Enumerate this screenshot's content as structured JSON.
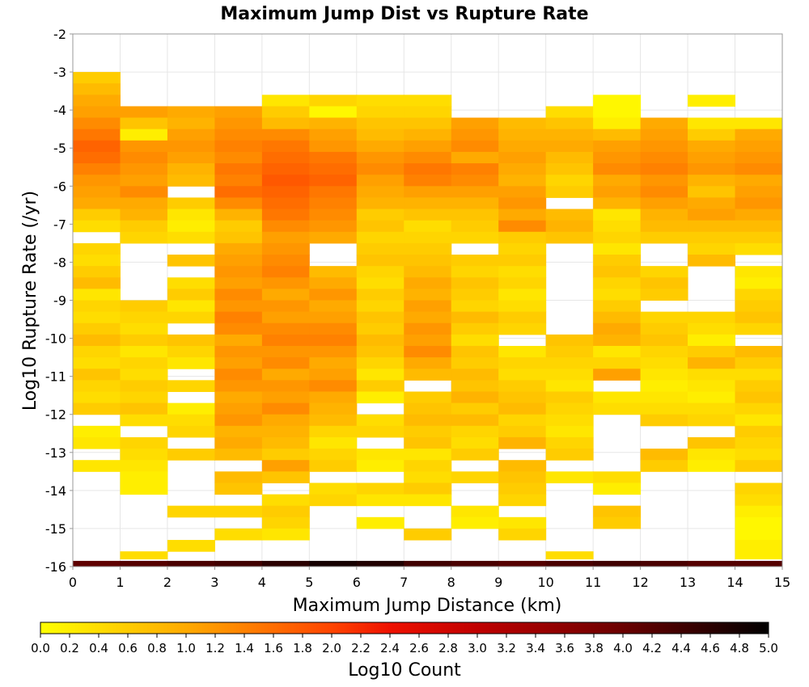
{
  "chart_data": {
    "type": "heatmap",
    "title": "Maximum Jump Dist vs Rupture Rate",
    "xlabel": "Maximum Jump Distance (km)",
    "ylabel": "Log10 Rupture Rate (/yr)",
    "xlim": [
      0,
      15
    ],
    "ylim": [
      -16,
      -2
    ],
    "x_ticks": [
      0,
      1,
      2,
      3,
      4,
      5,
      6,
      7,
      8,
      9,
      10,
      11,
      12,
      13,
      14,
      15
    ],
    "y_ticks": [
      -2,
      -3,
      -4,
      -5,
      -6,
      -7,
      -8,
      -9,
      -10,
      -11,
      -12,
      -13,
      -14,
      -15,
      -16
    ],
    "grid": true,
    "bin_width_x": 1,
    "bin_height_y": 0.3,
    "colorbar": {
      "label": "Log10 Count",
      "min": 0.0,
      "max": 5.0,
      "ticks": [
        "0.0",
        "0.2",
        "0.4",
        "0.6",
        "0.8",
        "1.0",
        "1.2",
        "1.4",
        "1.6",
        "1.8",
        "2.0",
        "2.2",
        "2.4",
        "2.6",
        "2.8",
        "3.0",
        "3.2",
        "3.4",
        "3.6",
        "3.8",
        "4.0",
        "4.2",
        "4.4",
        "4.6",
        "4.8",
        "5.0"
      ],
      "colors": [
        {
          "v": 0.0,
          "c": "#ffff00"
        },
        {
          "v": 1.0,
          "c": "#ffaa00"
        },
        {
          "v": 2.0,
          "c": "#ff4400"
        },
        {
          "v": 2.4,
          "c": "#ee1100"
        },
        {
          "v": 3.0,
          "c": "#c00000"
        },
        {
          "v": 4.0,
          "c": "#6a0000"
        },
        {
          "v": 5.0,
          "c": "#000000"
        }
      ]
    },
    "columns": [
      {
        "x": 0,
        "top": -3.0,
        "values": [
          0.6,
          0.8,
          1.0,
          1.1,
          1.3,
          1.5,
          1.7,
          1.6,
          1.4,
          1.2,
          1.1,
          1.0,
          0.6,
          0.4,
          null,
          0.5,
          0.4,
          0.6,
          0.8,
          0.3,
          0.5,
          0.4,
          0.6,
          0.8,
          0.5,
          0.4,
          0.7,
          0.5,
          0.4,
          0.6,
          null,
          0.2,
          0.3,
          null,
          0.3,
          null,
          null,
          null,
          null,
          null,
          null,
          null,
          null,
          null,
          null,
          null,
          null,
          null,
          null
        ]
      },
      {
        "x": 1,
        "top": -3.9,
        "values": [
          1.1,
          0.7,
          0.2,
          1.2,
          1.3,
          1.2,
          1.1,
          1.3,
          1.0,
          0.9,
          0.6,
          0.5,
          null,
          null,
          null,
          null,
          null,
          0.6,
          0.5,
          0.4,
          0.6,
          0.3,
          0.5,
          0.4,
          0.6,
          0.5,
          0.7,
          0.4,
          null,
          0.5,
          0.4,
          0.3,
          0.2,
          0.2,
          null,
          null,
          null,
          null,
          null,
          0.4,
          null
        ]
      },
      {
        "x": 2,
        "top": -3.9,
        "values": [
          1.0,
          0.9,
          1.1,
          1.2,
          1.1,
          0.9,
          0.8,
          null,
          0.6,
          0.3,
          0.2,
          0.4,
          null,
          0.7,
          null,
          0.4,
          0.6,
          0.3,
          0.5,
          null,
          0.7,
          0.5,
          0.3,
          null,
          0.5,
          null,
          0.2,
          0.4,
          0.5,
          null,
          0.6,
          null,
          null,
          null,
          null,
          0.5,
          null,
          null,
          0.4,
          null
        ]
      },
      {
        "x": 3,
        "top": -3.9,
        "values": [
          1.1,
          1.2,
          1.3,
          1.4,
          1.3,
          1.5,
          1.4,
          1.6,
          1.3,
          0.9,
          0.6,
          0.7,
          1.0,
          1.1,
          1.2,
          1.1,
          1.3,
          1.2,
          1.4,
          1.3,
          1.0,
          1.2,
          1.1,
          1.3,
          1.2,
          1.0,
          1.1,
          1.2,
          0.9,
          1.0,
          0.8,
          null,
          0.8,
          0.7,
          null,
          0.5,
          null,
          0.4,
          null
        ]
      },
      {
        "x": 4,
        "top": -3.6,
        "values": [
          0.3,
          0.6,
          0.8,
          1.3,
          1.5,
          1.6,
          1.7,
          1.8,
          1.7,
          1.6,
          1.5,
          1.3,
          1.1,
          1.2,
          1.3,
          1.4,
          1.2,
          1.0,
          1.2,
          1.1,
          1.3,
          1.4,
          1.2,
          1.3,
          1.0,
          1.2,
          1.1,
          1.3,
          1.0,
          0.9,
          0.8,
          0.6,
          1.1,
          0.7,
          null,
          0.4,
          0.6,
          0.5,
          0.3
        ]
      },
      {
        "x": 5,
        "top": -3.6,
        "values": [
          0.5,
          0.1,
          0.9,
          1.1,
          1.2,
          1.5,
          1.6,
          1.7,
          1.5,
          1.4,
          1.3,
          1.2,
          1.0,
          null,
          null,
          0.8,
          1.0,
          1.2,
          1.0,
          1.1,
          1.3,
          1.4,
          1.2,
          1.0,
          1.1,
          1.3,
          1.0,
          0.9,
          0.8,
          0.5,
          0.3,
          0.5,
          0.6,
          null,
          0.4,
          0.5,
          null
        ]
      },
      {
        "x": 6,
        "top": -3.6,
        "values": [
          0.4,
          0.5,
          0.7,
          0.8,
          1.0,
          1.2,
          1.3,
          1.1,
          1.0,
          0.9,
          0.6,
          0.7,
          0.5,
          0.6,
          0.7,
          0.5,
          0.4,
          0.6,
          0.5,
          0.7,
          0.6,
          0.8,
          0.7,
          0.5,
          0.3,
          0.6,
          0.2,
          null,
          0.4,
          0.5,
          null,
          0.3,
          0.2,
          null,
          0.5,
          0.3,
          null,
          0.2
        ]
      },
      {
        "x": 7,
        "top": -3.6,
        "values": [
          0.4,
          0.5,
          0.7,
          0.9,
          1.1,
          1.3,
          1.5,
          1.4,
          1.1,
          0.9,
          0.7,
          0.4,
          0.5,
          0.6,
          0.7,
          0.8,
          1.0,
          0.9,
          1.1,
          1.0,
          1.2,
          1.1,
          1.3,
          1.0,
          0.8,
          null,
          0.6,
          0.7,
          0.8,
          0.6,
          0.7,
          0.3,
          0.5,
          0.4,
          0.6,
          0.3,
          null,
          null,
          0.6
        ]
      },
      {
        "x": 8,
        "top": -4.2,
        "values": [
          1.1,
          1.2,
          1.3,
          1.0,
          1.4,
          1.3,
          1.1,
          0.9,
          0.7,
          0.6,
          0.5,
          null,
          0.6,
          0.5,
          0.7,
          0.6,
          0.5,
          0.8,
          0.6,
          0.4,
          0.7,
          0.6,
          0.8,
          0.7,
          0.9,
          0.6,
          0.8,
          0.5,
          0.4,
          0.6,
          null,
          0.5,
          null,
          null,
          0.3,
          0.2
        ]
      },
      {
        "x": 9,
        "top": -4.2,
        "values": [
          0.8,
          0.9,
          1.0,
          1.1,
          1.0,
          0.9,
          1.1,
          1.2,
          1.0,
          1.3,
          0.6,
          0.5,
          0.6,
          0.4,
          0.5,
          0.3,
          0.4,
          0.6,
          0.5,
          null,
          0.3,
          0.5,
          0.4,
          0.6,
          0.7,
          0.8,
          0.5,
          0.6,
          0.9,
          null,
          0.8,
          0.7,
          0.6,
          0.5,
          null,
          0.3,
          0.5,
          null,
          null
        ]
      },
      {
        "x": 10,
        "top": -3.9,
        "values": [
          0.4,
          0.7,
          0.9,
          1.0,
          0.8,
          0.7,
          0.5,
          0.6,
          null,
          0.8,
          0.9,
          0.7,
          null,
          null,
          null,
          null,
          null,
          null,
          null,
          null,
          0.7,
          0.6,
          0.5,
          0.4,
          0.3,
          0.6,
          0.5,
          0.4,
          0.3,
          0.5,
          0.6,
          null,
          0.3,
          null,
          null,
          null,
          null,
          null,
          null,
          0.4
        ]
      },
      {
        "x": 11,
        "top": -3.6,
        "values": [
          0.1,
          0.1,
          0.2,
          0.8,
          1.1,
          1.2,
          1.3,
          1.0,
          1.1,
          0.9,
          0.3,
          0.4,
          0.5,
          0.3,
          0.6,
          0.7,
          0.5,
          0.4,
          0.6,
          0.8,
          1.0,
          0.9,
          0.3,
          0.5,
          1.1,
          null,
          0.3,
          0.4,
          null,
          null,
          null,
          null,
          null,
          0.4,
          0.2,
          null,
          0.7,
          0.6,
          null
        ]
      },
      {
        "x": 12,
        "top": -4.2,
        "values": [
          1.0,
          1.1,
          1.2,
          1.3,
          1.4,
          1.2,
          1.3,
          1.1,
          0.9,
          0.8,
          0.6,
          null,
          null,
          0.5,
          0.7,
          0.6,
          null,
          0.5,
          0.6,
          0.7,
          0.5,
          0.4,
          0.3,
          0.2,
          0.3,
          0.4,
          0.6,
          null,
          null,
          0.8,
          0.6,
          null
        ]
      },
      {
        "x": 13,
        "top": -3.6,
        "values": [
          0.2,
          null,
          0.3,
          0.6,
          1.0,
          1.1,
          1.2,
          0.9,
          0.7,
          1.0,
          1.1,
          0.8,
          0.6,
          0.5,
          0.8,
          null,
          null,
          null,
          null,
          0.5,
          0.4,
          0.2,
          0.6,
          0.9,
          0.4,
          0.3,
          0.2,
          0.4,
          0.5,
          null,
          0.7,
          0.3,
          0.2,
          null,
          null
        ]
      },
      {
        "x": 14,
        "top": -4.2,
        "values": [
          0.3,
          1.0,
          1.1,
          1.2,
          1.3,
          1.0,
          1.1,
          1.2,
          1.0,
          0.8,
          0.6,
          0.4,
          null,
          0.3,
          0.2,
          0.5,
          0.6,
          0.7,
          0.5,
          null,
          0.8,
          0.6,
          0.4,
          0.6,
          0.7,
          0.5,
          0.3,
          0.6,
          0.5,
          0.4,
          0.6,
          null,
          0.5,
          0.4,
          0.2,
          0.1,
          0.1,
          0.2,
          0.2,
          null
        ]
      }
    ],
    "bottom_row": {
      "y": -16.0,
      "values": [
        4.1,
        4.2,
        4.3,
        4.4,
        4.6,
        4.8,
        4.7,
        4.4,
        4.3,
        4.2,
        4.3,
        4.4,
        4.3,
        4.2,
        4.2
      ]
    }
  }
}
